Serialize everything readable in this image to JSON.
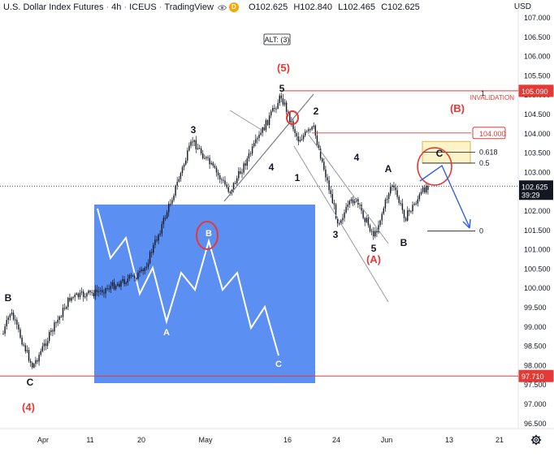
{
  "header": {
    "symbol": "U.S. Dollar Index Futures",
    "interval": "4h",
    "exchange": "ICEUS",
    "source": "TradingView",
    "ohlc": [
      {
        "k": "O",
        "v": "102.625"
      },
      {
        "k": "H",
        "v": "102.840"
      },
      {
        "k": "L",
        "v": "102.465"
      },
      {
        "k": "C",
        "v": "102.625"
      }
    ],
    "dot_orange": "#f7a600",
    "dot_label": "D"
  },
  "currency": "USD",
  "colors": {
    "red": "#e53935",
    "blue_box": "#5b8ff2",
    "arrow": "#2f5ef0",
    "candles": "#131722",
    "fib_box": "#fdf3c9",
    "fib_border": "#d8b64a",
    "last_price_tag": "#131722"
  },
  "chart_data": {
    "type": "candlestick",
    "y_ticks": [
      107.0,
      106.5,
      106.0,
      105.5,
      105.0,
      104.5,
      104.0,
      103.5,
      103.0,
      102.5,
      102.0,
      101.5,
      101.0,
      100.5,
      100.0,
      99.5,
      99.0,
      98.5,
      98.0,
      97.5,
      97.0,
      96.5
    ],
    "x_ticks": [
      "Apr",
      "11",
      "20",
      "May",
      "16",
      "24",
      "Jun",
      "13",
      "21"
    ],
    "ylim": [
      96.3,
      107.5
    ],
    "price_path_pivots": [
      {
        "label": "C",
        "y": 97.9
      },
      {
        "label": "B",
        "y": 99.2
      },
      {
        "label": "3",
        "y": 103.75
      },
      {
        "label": "4",
        "y": 102.3
      },
      {
        "label": "5",
        "y": 104.95
      },
      {
        "label": "1",
        "y": 103.3
      },
      {
        "label": "2",
        "y": 103.9
      },
      {
        "label": "3",
        "y": 101.65
      },
      {
        "label": "4",
        "y": 102.2
      },
      {
        "label": "5",
        "y": 101.3
      },
      {
        "label": "A",
        "y": 102.75
      },
      {
        "label": "B",
        "y": 101.8
      },
      {
        "label": "last",
        "y": 102.625
      }
    ],
    "price_tags": {
      "invalidation": "105.090",
      "level_104": "104.000",
      "last": "102.625",
      "countdown": "39:29",
      "low": "97.710"
    },
    "fib_levels": [
      {
        "label": "0.618",
        "y": 103.5
      },
      {
        "label": "0.5",
        "y": 103.22
      },
      {
        "label": "0",
        "y": 101.46
      }
    ],
    "labels": {
      "alt": "ALT: (3)",
      "wave5": "(5)",
      "waveA": "(A)",
      "waveB": "(B)",
      "wave4": "(4)",
      "invalidation": "INVALIDATION",
      "one": "1"
    },
    "wave_labels": {
      "B_left": "B",
      "C_left": "C",
      "w3": "3",
      "w4": "4",
      "w5": "5",
      "w1": "1",
      "w2": "2",
      "w3b": "3",
      "w4b": "4",
      "w5b": "5",
      "A": "A",
      "B": "B",
      "C": "C"
    },
    "inset": {
      "labels": {
        "B": "B",
        "A": "A",
        "C": "C"
      }
    }
  }
}
